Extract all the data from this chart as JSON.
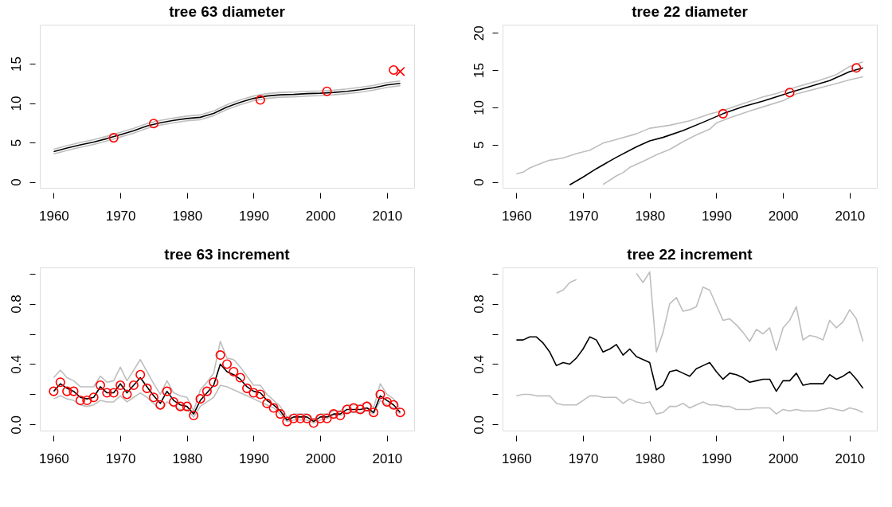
{
  "chart_data": [
    {
      "type": "line",
      "title": "tree  63 diameter",
      "xlim": [
        1957.92,
        2014.08
      ],
      "xticks": [
        1960,
        1970,
        1980,
        1990,
        2000,
        2010
      ],
      "ylim": [
        -0.75,
        19.95
      ],
      "yticks": [
        0,
        5,
        10,
        15
      ],
      "series": [
        {
          "color": "#bebebe",
          "x": [
            1960,
            1962,
            1964,
            1966,
            1968,
            1970,
            1972,
            1974,
            1976,
            1978,
            1980,
            1982,
            1984,
            1986,
            1988,
            1990,
            1992,
            1994,
            1996,
            1998,
            2000,
            2002,
            2004,
            2006,
            2008,
            2010,
            2012
          ],
          "values": [
            4.15,
            4.6,
            5.0,
            5.35,
            5.8,
            6.3,
            6.8,
            7.4,
            7.8,
            8.1,
            8.35,
            8.5,
            9.0,
            9.8,
            10.4,
            10.9,
            11.2,
            11.35,
            11.4,
            11.5,
            11.55,
            11.65,
            11.8,
            12.0,
            12.25,
            12.6,
            12.8
          ]
        },
        {
          "color": "#bebebe",
          "x": [
            1960,
            1962,
            1964,
            1966,
            1968,
            1970,
            1972,
            1974,
            1976,
            1978,
            1980,
            1982,
            1984,
            1986,
            1988,
            1990,
            1992,
            1994,
            1996,
            1998,
            2000,
            2002,
            2004,
            2006,
            2008,
            2010,
            2012
          ],
          "values": [
            3.55,
            4.0,
            4.4,
            4.75,
            5.2,
            5.7,
            6.2,
            6.8,
            7.2,
            7.5,
            7.75,
            7.9,
            8.4,
            9.2,
            9.8,
            10.3,
            10.6,
            10.75,
            10.8,
            10.9,
            10.95,
            11.05,
            11.2,
            11.4,
            11.65,
            12.0,
            12.2
          ]
        },
        {
          "color": "#000000",
          "x": [
            1960,
            1962,
            1964,
            1966,
            1968,
            1970,
            1972,
            1974,
            1976,
            1978,
            1980,
            1982,
            1984,
            1986,
            1988,
            1990,
            1992,
            1994,
            1996,
            1998,
            2000,
            2002,
            2004,
            2006,
            2008,
            2010,
            2012
          ],
          "values": [
            3.85,
            4.3,
            4.7,
            5.05,
            5.5,
            6.0,
            6.5,
            7.1,
            7.5,
            7.8,
            8.05,
            8.2,
            8.7,
            9.5,
            10.1,
            10.6,
            10.9,
            11.05,
            11.1,
            11.2,
            11.25,
            11.35,
            11.5,
            11.7,
            11.95,
            12.3,
            12.5
          ]
        },
        {
          "type": "scatter",
          "marker": "circle",
          "color": "#ff0000",
          "x": [
            1969,
            1975,
            1991,
            2001,
            2011
          ],
          "values": [
            5.6,
            7.4,
            10.4,
            11.5,
            14.2
          ]
        },
        {
          "type": "scatter",
          "marker": "cross",
          "color": "#ff0000",
          "x": [
            2012
          ],
          "values": [
            14.0
          ]
        }
      ]
    },
    {
      "type": "line",
      "title": "tree  22 diameter",
      "xlim": [
        1957.92,
        2014.08
      ],
      "xticks": [
        1960,
        1970,
        1980,
        1990,
        2000,
        2010
      ],
      "ylim": [
        -0.8,
        21.1
      ],
      "yticks": [
        0,
        5,
        10,
        15,
        20
      ],
      "series": [
        {
          "color": "#bebebe",
          "x": [
            1960,
            1961,
            1962,
            1964,
            1965,
            1967,
            1969,
            1971,
            1973,
            1975,
            1978,
            1980,
            1983,
            1986,
            1989,
            1991,
            1994,
            1997,
            1999,
            2002,
            2005,
            2008,
            2010,
            2012
          ],
          "values": [
            1.06,
            1.3,
            1.87,
            2.58,
            2.9,
            3.2,
            3.8,
            4.25,
            5.2,
            5.7,
            6.45,
            7.2,
            7.6,
            8.2,
            9.1,
            9.6,
            10.5,
            11.4,
            11.85,
            12.75,
            13.5,
            14.4,
            15.5,
            16.1
          ]
        },
        {
          "color": "#bebebe",
          "x": [
            1973,
            1975,
            1976,
            1977,
            1979,
            1981,
            1983,
            1985,
            1987,
            1989,
            1990,
            1992,
            1995,
            1998,
            2000,
            2002,
            2005,
            2008,
            2010,
            2012
          ],
          "values": [
            -0.35,
            0.8,
            1.24,
            1.94,
            2.75,
            3.64,
            4.35,
            5.4,
            6.3,
            7.07,
            7.9,
            8.6,
            9.5,
            10.35,
            10.9,
            11.8,
            12.5,
            13.2,
            13.7,
            14.1
          ]
        },
        {
          "color": "#000000",
          "x": [
            1968,
            1970,
            1972,
            1975,
            1978,
            1980,
            1982,
            1985,
            1988,
            1991,
            1994,
            1997,
            2000,
            2001,
            2004,
            2007,
            2010,
            2012
          ],
          "values": [
            -0.4,
            0.64,
            1.77,
            3.3,
            4.7,
            5.5,
            5.97,
            6.9,
            8.0,
            9.15,
            10.1,
            10.85,
            11.7,
            12.0,
            12.8,
            13.6,
            14.8,
            15.3
          ]
        },
        {
          "type": "scatter",
          "marker": "circle",
          "color": "#ff0000",
          "x": [
            1991,
            2001,
            2011
          ],
          "values": [
            9.15,
            12.0,
            15.3
          ]
        }
      ]
    },
    {
      "type": "line",
      "title": "tree  63 increment",
      "xlim": [
        1957.92,
        2014.08
      ],
      "xticks": [
        1960,
        1970,
        1980,
        1990,
        2000,
        2010
      ],
      "ylim": [
        -0.04,
        1.04
      ],
      "yticks": [
        {
          "value": 0,
          "label": "0.0"
        },
        {
          "value": 0.2,
          "label": null
        },
        0.4,
        {
          "value": 0.6,
          "label": null
        },
        0.8,
        {
          "value": 1,
          "label": null
        }
      ],
      "x": [
        1960,
        1961,
        1962,
        1963,
        1964,
        1965,
        1966,
        1967,
        1968,
        1969,
        1970,
        1971,
        1972,
        1973,
        1974,
        1975,
        1976,
        1977,
        1978,
        1979,
        1980,
        1981,
        1982,
        1983,
        1984,
        1985,
        1986,
        1987,
        1988,
        1989,
        1990,
        1991,
        1992,
        1993,
        1994,
        1995,
        1996,
        1997,
        1998,
        1999,
        2000,
        2001,
        2002,
        2003,
        2004,
        2005,
        2006,
        2007,
        2008,
        2009,
        2010,
        2011,
        2012
      ],
      "series": [
        {
          "color": "#bebebe",
          "values": [
            0.31,
            0.36,
            0.31,
            0.29,
            0.25,
            0.25,
            0.25,
            0.32,
            0.28,
            0.29,
            0.38,
            0.29,
            0.36,
            0.43,
            0.35,
            0.27,
            0.2,
            0.29,
            0.21,
            0.19,
            0.18,
            0.09,
            0.23,
            0.28,
            0.34,
            0.55,
            0.44,
            0.43,
            0.38,
            0.32,
            0.26,
            0.26,
            0.2,
            0.16,
            0.12,
            0.05,
            0.07,
            0.07,
            0.07,
            0.03,
            0.07,
            0.07,
            0.09,
            0.09,
            0.13,
            0.13,
            0.13,
            0.15,
            0.11,
            0.27,
            0.2,
            0.17,
            0.1
          ]
        },
        {
          "color": "#bebebe",
          "values": [
            0.17,
            0.19,
            0.17,
            0.16,
            0.13,
            0.12,
            0.13,
            0.16,
            0.15,
            0.15,
            0.19,
            0.15,
            0.18,
            0.21,
            0.18,
            0.14,
            0.1,
            0.15,
            0.12,
            0.1,
            0.1,
            0.05,
            0.12,
            0.15,
            0.18,
            0.26,
            0.25,
            0.23,
            0.21,
            0.19,
            0.17,
            0.15,
            0.13,
            0.11,
            0.07,
            0.02,
            0.03,
            0.03,
            0.03,
            0.01,
            0.03,
            0.04,
            0.06,
            0.06,
            0.08,
            0.08,
            0.08,
            0.09,
            0.07,
            0.16,
            0.13,
            0.11,
            0.07
          ]
        },
        {
          "color": "#000000",
          "values": [
            0.22,
            0.27,
            0.24,
            0.22,
            0.18,
            0.17,
            0.18,
            0.25,
            0.21,
            0.21,
            0.27,
            0.21,
            0.26,
            0.31,
            0.25,
            0.19,
            0.14,
            0.22,
            0.16,
            0.13,
            0.12,
            0.07,
            0.16,
            0.21,
            0.26,
            0.4,
            0.35,
            0.33,
            0.3,
            0.25,
            0.22,
            0.21,
            0.16,
            0.13,
            0.09,
            0.03,
            0.05,
            0.05,
            0.05,
            0.02,
            0.05,
            0.05,
            0.07,
            0.07,
            0.1,
            0.1,
            0.1,
            0.11,
            0.08,
            0.19,
            0.16,
            0.13,
            0.08
          ]
        },
        {
          "type": "scatter",
          "marker": "circle",
          "color": "#ff0000",
          "values": [
            0.22,
            0.28,
            0.22,
            0.22,
            0.16,
            0.16,
            0.18,
            0.26,
            0.21,
            0.21,
            0.26,
            0.2,
            0.26,
            0.33,
            0.24,
            0.18,
            0.13,
            0.22,
            0.15,
            0.12,
            0.12,
            0.06,
            0.17,
            0.22,
            0.28,
            0.46,
            0.4,
            0.35,
            0.31,
            0.24,
            0.21,
            0.2,
            0.14,
            0.11,
            0.07,
            0.02,
            0.04,
            0.04,
            0.04,
            0.01,
            0.04,
            0.04,
            0.07,
            0.06,
            0.1,
            0.11,
            0.1,
            0.12,
            0.08,
            0.2,
            0.15,
            0.13,
            0.08
          ]
        }
      ]
    },
    {
      "type": "line",
      "title": "tree  22 increment",
      "xlim": [
        1957.92,
        2014.08
      ],
      "xticks": [
        1960,
        1970,
        1980,
        1990,
        2000,
        2010
      ],
      "ylim": [
        -0.04,
        1.04
      ],
      "yticks": [
        {
          "value": 0,
          "label": "0.0"
        },
        {
          "value": 0.2,
          "label": null
        },
        0.4,
        {
          "value": 0.6,
          "label": null
        },
        0.8,
        {
          "value": 1,
          "label": null
        }
      ],
      "x": [
        1960,
        1961,
        1962,
        1963,
        1964,
        1965,
        1966,
        1967,
        1968,
        1969,
        1970,
        1971,
        1972,
        1973,
        1974,
        1975,
        1976,
        1977,
        1978,
        1979,
        1980,
        1981,
        1982,
        1983,
        1984,
        1985,
        1986,
        1987,
        1988,
        1989,
        1990,
        1991,
        1992,
        1993,
        1994,
        1995,
        1996,
        1997,
        1998,
        1999,
        2000,
        2001,
        2002,
        2003,
        2004,
        2005,
        2006,
        2007,
        2008,
        2009,
        2010,
        2011,
        2012
      ],
      "series": [
        {
          "color": "#bebebe",
          "values": [
            null,
            null,
            null,
            null,
            null,
            null,
            0.87,
            0.89,
            0.94,
            0.96,
            null,
            null,
            null,
            null,
            null,
            null,
            null,
            null,
            1.0,
            0.94,
            1.01,
            0.48,
            0.61,
            0.8,
            0.84,
            0.75,
            0.76,
            0.78,
            0.91,
            0.89,
            0.79,
            0.69,
            0.7,
            0.66,
            0.61,
            0.55,
            0.63,
            0.6,
            0.64,
            0.49,
            0.64,
            0.69,
            0.78,
            0.56,
            0.59,
            0.58,
            0.56,
            0.69,
            0.64,
            0.68,
            0.76,
            0.7,
            0.55
          ]
        },
        {
          "color": "#bebebe",
          "values": [
            0.19,
            0.2,
            0.2,
            0.19,
            0.19,
            0.19,
            0.14,
            0.13,
            0.13,
            0.13,
            0.16,
            0.19,
            0.19,
            0.18,
            0.18,
            0.18,
            0.14,
            0.17,
            0.15,
            0.14,
            0.15,
            0.07,
            0.08,
            0.12,
            0.12,
            0.14,
            0.11,
            0.13,
            0.15,
            0.13,
            0.13,
            0.12,
            0.12,
            0.1,
            0.1,
            0.1,
            0.11,
            0.11,
            0.11,
            0.07,
            0.1,
            0.09,
            0.1,
            0.09,
            0.09,
            0.09,
            0.1,
            0.11,
            0.1,
            0.09,
            0.11,
            0.1,
            0.08
          ]
        },
        {
          "color": "#000000",
          "values": [
            0.56,
            0.56,
            0.58,
            0.58,
            0.54,
            0.48,
            0.39,
            0.41,
            0.4,
            0.44,
            0.5,
            0.58,
            0.56,
            0.48,
            0.5,
            0.53,
            0.46,
            0.5,
            0.45,
            0.43,
            0.41,
            0.23,
            0.26,
            0.35,
            0.36,
            0.34,
            0.32,
            0.37,
            0.39,
            0.41,
            0.35,
            0.3,
            0.34,
            0.33,
            0.31,
            0.28,
            0.29,
            0.3,
            0.3,
            0.22,
            0.29,
            0.29,
            0.34,
            0.26,
            0.27,
            0.27,
            0.27,
            0.33,
            0.3,
            0.32,
            0.35,
            0.3,
            0.24
          ]
        }
      ]
    }
  ]
}
